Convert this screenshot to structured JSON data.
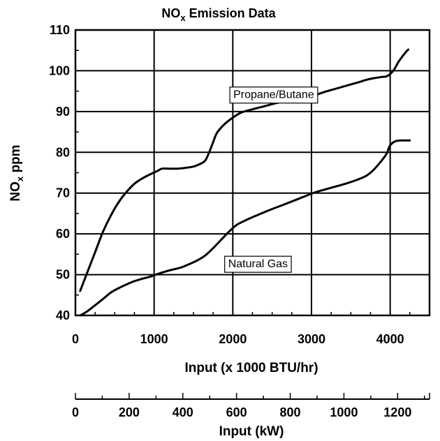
{
  "chart_data": {
    "type": "line",
    "title_main": "NO",
    "title_sub": "x",
    "title_rest": " Emission Data",
    "ylabel_main": "NO",
    "ylabel_sub": "x",
    "ylabel_rest": " ppm",
    "xlabel": "Input (x 1000 BTU/hr)",
    "x2label": "Input (kW)",
    "xlim": [
      0,
      4500
    ],
    "ylim": [
      40,
      110
    ],
    "x2lim": [
      0,
      1318.8
    ],
    "xticks": [
      0,
      1000,
      2000,
      3000,
      4000
    ],
    "yticks": [
      40,
      50,
      60,
      70,
      80,
      90,
      100,
      110
    ],
    "x2ticks": [
      0,
      200,
      400,
      600,
      800,
      1000,
      1200
    ],
    "grid": true,
    "series": [
      {
        "name": "Propane/Butane",
        "color": "#000000",
        "label_at": {
          "x": 2520,
          "y": 94.3
        },
        "x": [
          60,
          150,
          250,
          350,
          450,
          550,
          650,
          750,
          850,
          950,
          1050,
          1100,
          1200,
          1300,
          1400,
          1500,
          1600,
          1650,
          1700,
          1750,
          1800,
          1900,
          2000,
          2100,
          2200,
          2400,
          2600,
          2800,
          3000,
          3200,
          3400,
          3600,
          3700,
          3800,
          3900,
          3950,
          4000,
          4050,
          4100,
          4150,
          4200,
          4230
        ],
        "y": [
          46,
          50.5,
          55.5,
          60.5,
          64.5,
          67.8,
          70.3,
          72.3,
          73.6,
          74.6,
          75.5,
          76,
          76,
          76,
          76.2,
          76.5,
          77.3,
          78,
          80,
          82.5,
          84.8,
          87,
          88.5,
          89.7,
          90.3,
          91.3,
          92.3,
          93,
          93.8,
          95,
          96.1,
          97.2,
          97.8,
          98.2,
          98.5,
          98.6,
          99.2,
          100.3,
          102,
          103.4,
          104.6,
          105.2
        ]
      },
      {
        "name": "Natural Gas",
        "color": "#000000",
        "label_at": {
          "x": 2320,
          "y": 52.8
        },
        "x": [
          60,
          150,
          250,
          350,
          450,
          550,
          650,
          750,
          850,
          950,
          1050,
          1150,
          1250,
          1350,
          1450,
          1550,
          1650,
          1750,
          1850,
          1950,
          2050,
          2150,
          2250,
          2450,
          2650,
          2850,
          3050,
          3250,
          3450,
          3650,
          3750,
          3850,
          3950,
          3990,
          4030,
          4080,
          4140,
          4200,
          4250
        ],
        "y": [
          40,
          41,
          42.5,
          44,
          45.6,
          46.7,
          47.6,
          48.4,
          49,
          49.5,
          50.2,
          50.8,
          51.3,
          51.8,
          52.6,
          53.5,
          54.7,
          56.5,
          58.5,
          60.5,
          62.2,
          63.2,
          64.1,
          65.7,
          67.2,
          68.7,
          70.2,
          71.3,
          72.4,
          73.8,
          75,
          77,
          79.5,
          81.4,
          82.3,
          82.8,
          82.9,
          82.9,
          82.9
        ]
      }
    ]
  }
}
